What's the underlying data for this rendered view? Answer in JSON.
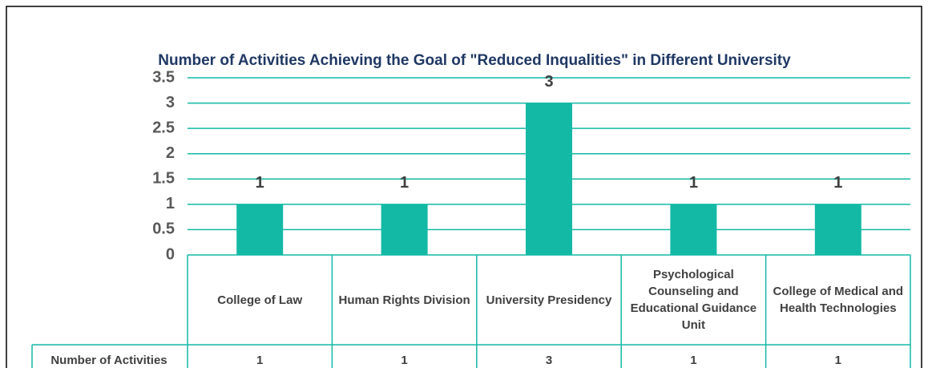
{
  "chart_data": {
    "type": "bar",
    "title": "Number of Activities Achieving the Goal of \"Reduced Inqualities\" in Different University",
    "categories": [
      "College of Law",
      "Human Rights Division",
      "University Presidency",
      "Psychological Counseling and Educational Guidance Unit",
      "College of Medical and Health Technologies"
    ],
    "series": [
      {
        "name": "Number of Activities",
        "color": "#13b9a5",
        "values": [
          1,
          1,
          3,
          1,
          1
        ]
      }
    ],
    "ylim": [
      0,
      3.5
    ],
    "yticks": [
      0,
      0.5,
      1,
      1.5,
      2,
      2.5,
      3,
      3.5
    ],
    "grid": true,
    "data_table": true
  }
}
